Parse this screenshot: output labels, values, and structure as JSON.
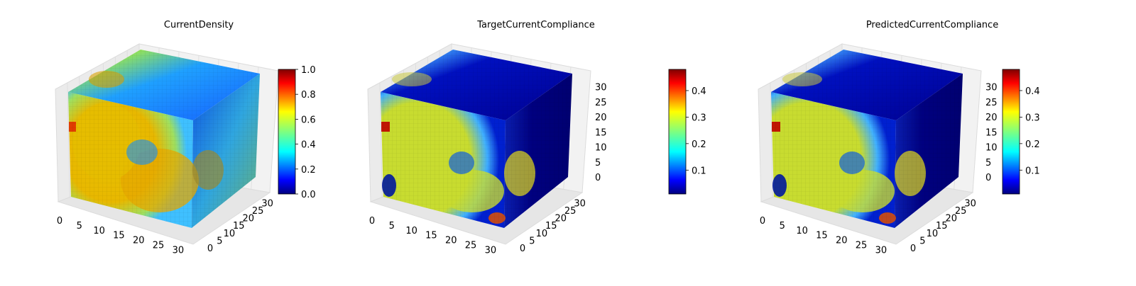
{
  "chart_data": [
    {
      "type": "heatmap",
      "variant": "3d-voxel-cube",
      "title": "CurrentDensity",
      "axis_range": [
        0,
        32
      ],
      "x_ticks": [
        "0",
        "5",
        "10",
        "15",
        "20",
        "25",
        "30"
      ],
      "y_ticks": [
        "0",
        "5",
        "10",
        "15",
        "20",
        "25",
        "30"
      ],
      "z_ticks": [],
      "colormap": "jet",
      "colorbar": {
        "range": [
          0.0,
          1.0
        ],
        "ticks": [
          "0.0",
          "0.2",
          "0.4",
          "0.6",
          "0.8",
          "1.0"
        ],
        "tick_values": [
          0.0,
          0.2,
          0.4,
          0.6,
          0.8,
          1.0
        ]
      }
    },
    {
      "type": "heatmap",
      "variant": "3d-voxel-cube",
      "title": "TargetCurrentCompliance",
      "axis_range": [
        0,
        32
      ],
      "x_ticks": [
        "0",
        "5",
        "10",
        "15",
        "20",
        "25",
        "30"
      ],
      "y_ticks": [
        "0",
        "5",
        "10",
        "15",
        "20",
        "25",
        "30"
      ],
      "z_ticks": [
        "0",
        "5",
        "10",
        "15",
        "20",
        "25",
        "30"
      ],
      "colormap": "jet",
      "colorbar": {
        "range": [
          0.01,
          0.48
        ],
        "ticks": [
          "0.1",
          "0.2",
          "0.3",
          "0.4"
        ],
        "tick_values": [
          0.1,
          0.2,
          0.3,
          0.4
        ]
      }
    },
    {
      "type": "heatmap",
      "variant": "3d-voxel-cube",
      "title": "PredictedCurrentCompliance",
      "axis_range": [
        0,
        32
      ],
      "x_ticks": [
        "0",
        "5",
        "10",
        "15",
        "20",
        "25",
        "30"
      ],
      "y_ticks": [
        "0",
        "5",
        "10",
        "15",
        "20",
        "25",
        "30"
      ],
      "z_ticks": [
        "0",
        "5",
        "10",
        "15",
        "20",
        "25",
        "30"
      ],
      "colormap": "jet",
      "colorbar": {
        "range": [
          0.01,
          0.48
        ],
        "ticks": [
          "0.1",
          "0.2",
          "0.3",
          "0.4"
        ],
        "tick_values": [
          0.1,
          0.2,
          0.3,
          0.4
        ]
      }
    }
  ],
  "colors": {
    "jet_stops": [
      "#00007f",
      "#0000ff",
      "#007fff",
      "#00ffff",
      "#7fff7f",
      "#ffff00",
      "#ff7f00",
      "#ff0000",
      "#7f0000"
    ],
    "pane_fill": "#f2f2f2",
    "grid": "#dcdcdc"
  }
}
